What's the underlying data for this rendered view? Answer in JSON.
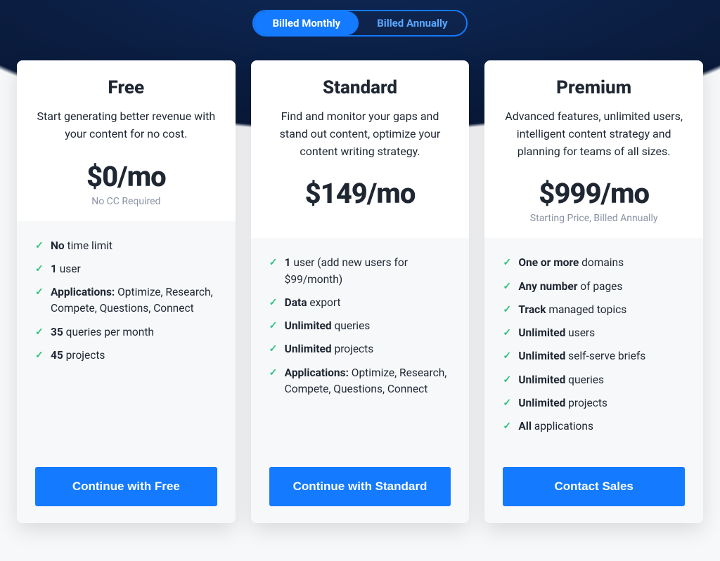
{
  "colors": {
    "accent": "#147aff",
    "accent_text": "#ffffff",
    "check": "#2ec27e",
    "card_bg": "#ffffff",
    "body_bg": "#f7f8fa",
    "text_primary": "#1f2733",
    "text_muted": "#8a93a3",
    "toggle_inactive_text": "#5aa7ff",
    "page_bg_dark_top": "#0e2a5a",
    "page_bg_dark_mid": "#0a1a3a"
  },
  "toggle": {
    "monthly": "Billed Monthly",
    "annually": "Billed Annually",
    "active": "monthly"
  },
  "plans": {
    "free": {
      "name": "Free",
      "desc": "Start generating better revenue with your content for no cost.",
      "price": "$0/mo",
      "sub": "No CC Required",
      "features": [
        {
          "bold": "No",
          "rest": " time limit"
        },
        {
          "bold": "1",
          "rest": " user"
        },
        {
          "bold": "Applications:",
          "rest": " Optimize, Research, Compete, Questions, Connect"
        },
        {
          "bold": "35",
          "rest": " queries per month"
        },
        {
          "bold": "45",
          "rest": " projects"
        }
      ],
      "cta": "Continue with Free"
    },
    "standard": {
      "name": "Standard",
      "desc": "Find and monitor your gaps and stand out content, optimize your content writing strategy.",
      "price": "$149/mo",
      "sub": "",
      "features": [
        {
          "bold": "1",
          "rest": " user (add new users for $99/month)"
        },
        {
          "bold": "Data",
          "rest": " export"
        },
        {
          "bold": "Unlimited",
          "rest": " queries"
        },
        {
          "bold": "Unlimited",
          "rest": " projects"
        },
        {
          "bold": "Applications:",
          "rest": " Optimize, Research, Compete, Questions, Connect"
        }
      ],
      "cta": "Continue with Standard"
    },
    "premium": {
      "name": "Premium",
      "desc": "Advanced features, unlimited users, intelligent content strategy and planning for teams of all sizes.",
      "price": "$999/mo",
      "sub": "Starting Price, Billed Annually",
      "features": [
        {
          "bold": "One or more",
          "rest": " domains"
        },
        {
          "bold": "Any number",
          "rest": " of pages"
        },
        {
          "bold": "Track",
          "rest": " managed topics"
        },
        {
          "bold": "Unlimited",
          "rest": " users"
        },
        {
          "bold": "Unlimited",
          "rest": " self-serve briefs"
        },
        {
          "bold": "Unlimited",
          "rest": " queries"
        },
        {
          "bold": "Unlimited",
          "rest": " projects"
        },
        {
          "bold": "All",
          "rest": " applications"
        }
      ],
      "cta": "Contact Sales"
    }
  }
}
